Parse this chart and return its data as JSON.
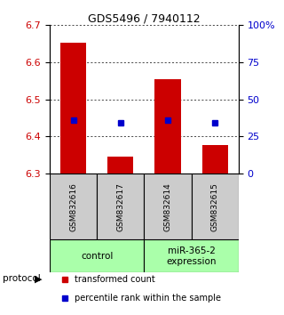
{
  "title": "GDS5496 / 7940112",
  "samples": [
    "GSM832616",
    "GSM832617",
    "GSM832614",
    "GSM832615"
  ],
  "bar_values": [
    6.652,
    6.345,
    6.555,
    6.376
  ],
  "blue_values": [
    6.443,
    6.436,
    6.445,
    6.436
  ],
  "ylim": [
    6.3,
    6.7
  ],
  "yticks_left": [
    6.3,
    6.4,
    6.5,
    6.6,
    6.7
  ],
  "yticks_right": [
    0,
    25,
    50,
    75,
    100
  ],
  "ytick_labels_right": [
    "0",
    "25",
    "50",
    "75",
    "100%"
  ],
  "bar_color": "#cc0000",
  "blue_color": "#0000cc",
  "bar_width": 0.55,
  "groups": [
    {
      "label": "control",
      "indices": [
        0,
        1
      ],
      "color": "#aaffaa"
    },
    {
      "label": "miR-365-2\nexpression",
      "indices": [
        2,
        3
      ],
      "color": "#aaffaa"
    }
  ],
  "protocol_label": "protocol",
  "legend1": "transformed count",
  "legend2": "percentile rank within the sample",
  "sample_box_color": "#cccccc",
  "ylabel_left_color": "#cc0000",
  "ylabel_right_color": "#0000cc",
  "title_fontsize": 9,
  "tick_fontsize": 8,
  "sample_fontsize": 6.5,
  "group_fontsize": 7.5,
  "legend_fontsize": 7
}
